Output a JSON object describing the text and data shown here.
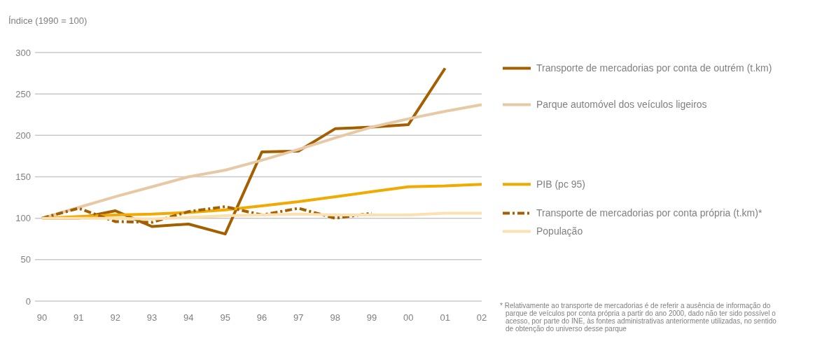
{
  "chart_data": {
    "type": "line",
    "ylabel": "Índice (1990 = 100)",
    "categories": [
      "90",
      "91",
      "92",
      "93",
      "94",
      "95",
      "96",
      "97",
      "98",
      "99",
      "00",
      "01",
      "02"
    ],
    "ylim": [
      0,
      300
    ],
    "yticks": [
      0,
      50,
      100,
      150,
      200,
      250,
      300
    ],
    "grid": "y",
    "legend": "right",
    "line_style": "solid",
    "marker": "none",
    "series": [
      {
        "name": "Transporte de mercadorias por conta de outrém (t.km)",
        "color": "#a35f00",
        "values": [
          100,
          100,
          109,
          90,
          93,
          81,
          180,
          181,
          208,
          210,
          213,
          281,
          null
        ]
      },
      {
        "name": "Parque automóvel dos veículos ligeiros",
        "color": "#e8c9a5",
        "values": [
          100,
          113,
          126,
          138,
          150,
          158,
          170,
          183,
          197,
          210,
          220,
          229,
          237
        ]
      },
      {
        "name": "PIB (pc 95)",
        "color": "#f0aa00",
        "values": [
          100,
          102,
          104,
          105,
          107,
          110,
          115,
          120,
          126,
          132,
          138,
          139,
          141
        ]
      },
      {
        "name": "Transporte de mercadorias por conta própria (t.km)*",
        "color": "#a35f00",
        "line_style": "dashed",
        "values": [
          100,
          112,
          96,
          95,
          108,
          114,
          104,
          112,
          100,
          106,
          null,
          null,
          null
        ]
      },
      {
        "name": "População",
        "color": "#fde0b0",
        "values": [
          100,
          100,
          100,
          99,
          101,
          103,
          104,
          105,
          104,
          104,
          104,
          106,
          106
        ]
      }
    ],
    "annotations": [
      "* Relativamente ao transporte de mercadorias é de referir a ausência de informação do parque de veículos por conta própria a partir do ano 2000, dado não ter sido possível o acesso, por parte do INE, às fontes administrativas anteriormente utilizadas, no sentido de obtenção do universo desse parque"
    ]
  }
}
